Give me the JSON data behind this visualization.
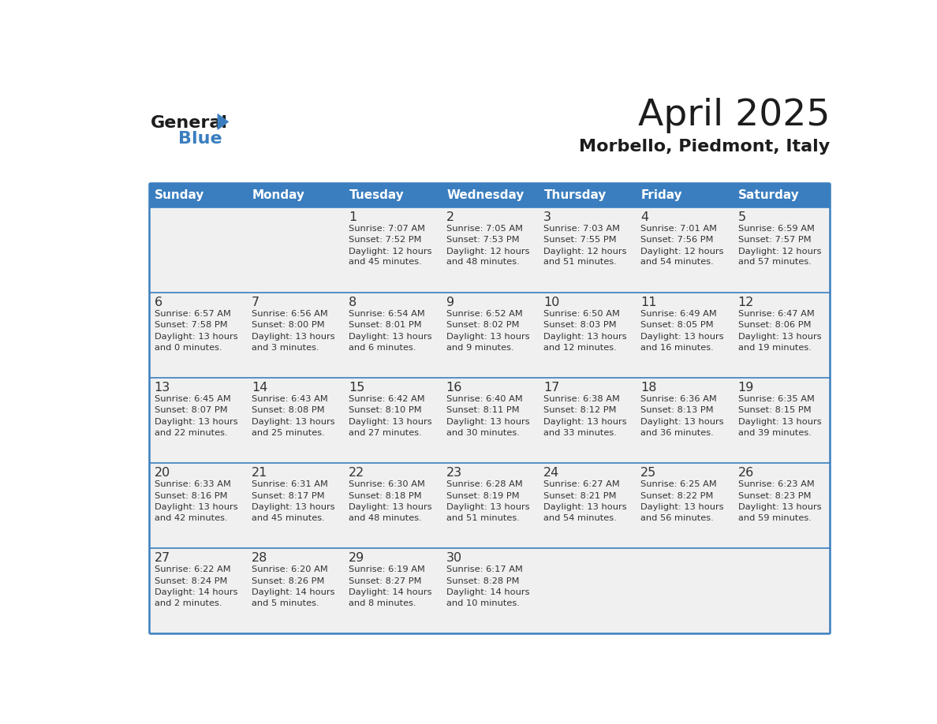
{
  "title": "April 2025",
  "subtitle": "Morbello, Piedmont, Italy",
  "header_color": "#3a7ebf",
  "header_text_color": "#ffffff",
  "cell_bg_color": "#f0f0f0",
  "border_color": "#3a7ebf",
  "separator_color": "#3a7ebf",
  "text_color": "#333333",
  "days_of_week": [
    "Sunday",
    "Monday",
    "Tuesday",
    "Wednesday",
    "Thursday",
    "Friday",
    "Saturday"
  ],
  "calendar_data": [
    [
      {
        "day": "",
        "sunrise": "",
        "sunset": "",
        "daylight": ""
      },
      {
        "day": "",
        "sunrise": "",
        "sunset": "",
        "daylight": ""
      },
      {
        "day": "1",
        "sunrise": "Sunrise: 7:07 AM",
        "sunset": "Sunset: 7:52 PM",
        "daylight": "Daylight: 12 hours\nand 45 minutes."
      },
      {
        "day": "2",
        "sunrise": "Sunrise: 7:05 AM",
        "sunset": "Sunset: 7:53 PM",
        "daylight": "Daylight: 12 hours\nand 48 minutes."
      },
      {
        "day": "3",
        "sunrise": "Sunrise: 7:03 AM",
        "sunset": "Sunset: 7:55 PM",
        "daylight": "Daylight: 12 hours\nand 51 minutes."
      },
      {
        "day": "4",
        "sunrise": "Sunrise: 7:01 AM",
        "sunset": "Sunset: 7:56 PM",
        "daylight": "Daylight: 12 hours\nand 54 minutes."
      },
      {
        "day": "5",
        "sunrise": "Sunrise: 6:59 AM",
        "sunset": "Sunset: 7:57 PM",
        "daylight": "Daylight: 12 hours\nand 57 minutes."
      }
    ],
    [
      {
        "day": "6",
        "sunrise": "Sunrise: 6:57 AM",
        "sunset": "Sunset: 7:58 PM",
        "daylight": "Daylight: 13 hours\nand 0 minutes."
      },
      {
        "day": "7",
        "sunrise": "Sunrise: 6:56 AM",
        "sunset": "Sunset: 8:00 PM",
        "daylight": "Daylight: 13 hours\nand 3 minutes."
      },
      {
        "day": "8",
        "sunrise": "Sunrise: 6:54 AM",
        "sunset": "Sunset: 8:01 PM",
        "daylight": "Daylight: 13 hours\nand 6 minutes."
      },
      {
        "day": "9",
        "sunrise": "Sunrise: 6:52 AM",
        "sunset": "Sunset: 8:02 PM",
        "daylight": "Daylight: 13 hours\nand 9 minutes."
      },
      {
        "day": "10",
        "sunrise": "Sunrise: 6:50 AM",
        "sunset": "Sunset: 8:03 PM",
        "daylight": "Daylight: 13 hours\nand 12 minutes."
      },
      {
        "day": "11",
        "sunrise": "Sunrise: 6:49 AM",
        "sunset": "Sunset: 8:05 PM",
        "daylight": "Daylight: 13 hours\nand 16 minutes."
      },
      {
        "day": "12",
        "sunrise": "Sunrise: 6:47 AM",
        "sunset": "Sunset: 8:06 PM",
        "daylight": "Daylight: 13 hours\nand 19 minutes."
      }
    ],
    [
      {
        "day": "13",
        "sunrise": "Sunrise: 6:45 AM",
        "sunset": "Sunset: 8:07 PM",
        "daylight": "Daylight: 13 hours\nand 22 minutes."
      },
      {
        "day": "14",
        "sunrise": "Sunrise: 6:43 AM",
        "sunset": "Sunset: 8:08 PM",
        "daylight": "Daylight: 13 hours\nand 25 minutes."
      },
      {
        "day": "15",
        "sunrise": "Sunrise: 6:42 AM",
        "sunset": "Sunset: 8:10 PM",
        "daylight": "Daylight: 13 hours\nand 27 minutes."
      },
      {
        "day": "16",
        "sunrise": "Sunrise: 6:40 AM",
        "sunset": "Sunset: 8:11 PM",
        "daylight": "Daylight: 13 hours\nand 30 minutes."
      },
      {
        "day": "17",
        "sunrise": "Sunrise: 6:38 AM",
        "sunset": "Sunset: 8:12 PM",
        "daylight": "Daylight: 13 hours\nand 33 minutes."
      },
      {
        "day": "18",
        "sunrise": "Sunrise: 6:36 AM",
        "sunset": "Sunset: 8:13 PM",
        "daylight": "Daylight: 13 hours\nand 36 minutes."
      },
      {
        "day": "19",
        "sunrise": "Sunrise: 6:35 AM",
        "sunset": "Sunset: 8:15 PM",
        "daylight": "Daylight: 13 hours\nand 39 minutes."
      }
    ],
    [
      {
        "day": "20",
        "sunrise": "Sunrise: 6:33 AM",
        "sunset": "Sunset: 8:16 PM",
        "daylight": "Daylight: 13 hours\nand 42 minutes."
      },
      {
        "day": "21",
        "sunrise": "Sunrise: 6:31 AM",
        "sunset": "Sunset: 8:17 PM",
        "daylight": "Daylight: 13 hours\nand 45 minutes."
      },
      {
        "day": "22",
        "sunrise": "Sunrise: 6:30 AM",
        "sunset": "Sunset: 8:18 PM",
        "daylight": "Daylight: 13 hours\nand 48 minutes."
      },
      {
        "day": "23",
        "sunrise": "Sunrise: 6:28 AM",
        "sunset": "Sunset: 8:19 PM",
        "daylight": "Daylight: 13 hours\nand 51 minutes."
      },
      {
        "day": "24",
        "sunrise": "Sunrise: 6:27 AM",
        "sunset": "Sunset: 8:21 PM",
        "daylight": "Daylight: 13 hours\nand 54 minutes."
      },
      {
        "day": "25",
        "sunrise": "Sunrise: 6:25 AM",
        "sunset": "Sunset: 8:22 PM",
        "daylight": "Daylight: 13 hours\nand 56 minutes."
      },
      {
        "day": "26",
        "sunrise": "Sunrise: 6:23 AM",
        "sunset": "Sunset: 8:23 PM",
        "daylight": "Daylight: 13 hours\nand 59 minutes."
      }
    ],
    [
      {
        "day": "27",
        "sunrise": "Sunrise: 6:22 AM",
        "sunset": "Sunset: 8:24 PM",
        "daylight": "Daylight: 14 hours\nand 2 minutes."
      },
      {
        "day": "28",
        "sunrise": "Sunrise: 6:20 AM",
        "sunset": "Sunset: 8:26 PM",
        "daylight": "Daylight: 14 hours\nand 5 minutes."
      },
      {
        "day": "29",
        "sunrise": "Sunrise: 6:19 AM",
        "sunset": "Sunset: 8:27 PM",
        "daylight": "Daylight: 14 hours\nand 8 minutes."
      },
      {
        "day": "30",
        "sunrise": "Sunrise: 6:17 AM",
        "sunset": "Sunset: 8:28 PM",
        "daylight": "Daylight: 14 hours\nand 10 minutes."
      },
      {
        "day": "",
        "sunrise": "",
        "sunset": "",
        "daylight": ""
      },
      {
        "day": "",
        "sunrise": "",
        "sunset": "",
        "daylight": ""
      },
      {
        "day": "",
        "sunrise": "",
        "sunset": "",
        "daylight": ""
      }
    ]
  ],
  "logo_text_general": "General",
  "logo_text_blue": "Blue"
}
